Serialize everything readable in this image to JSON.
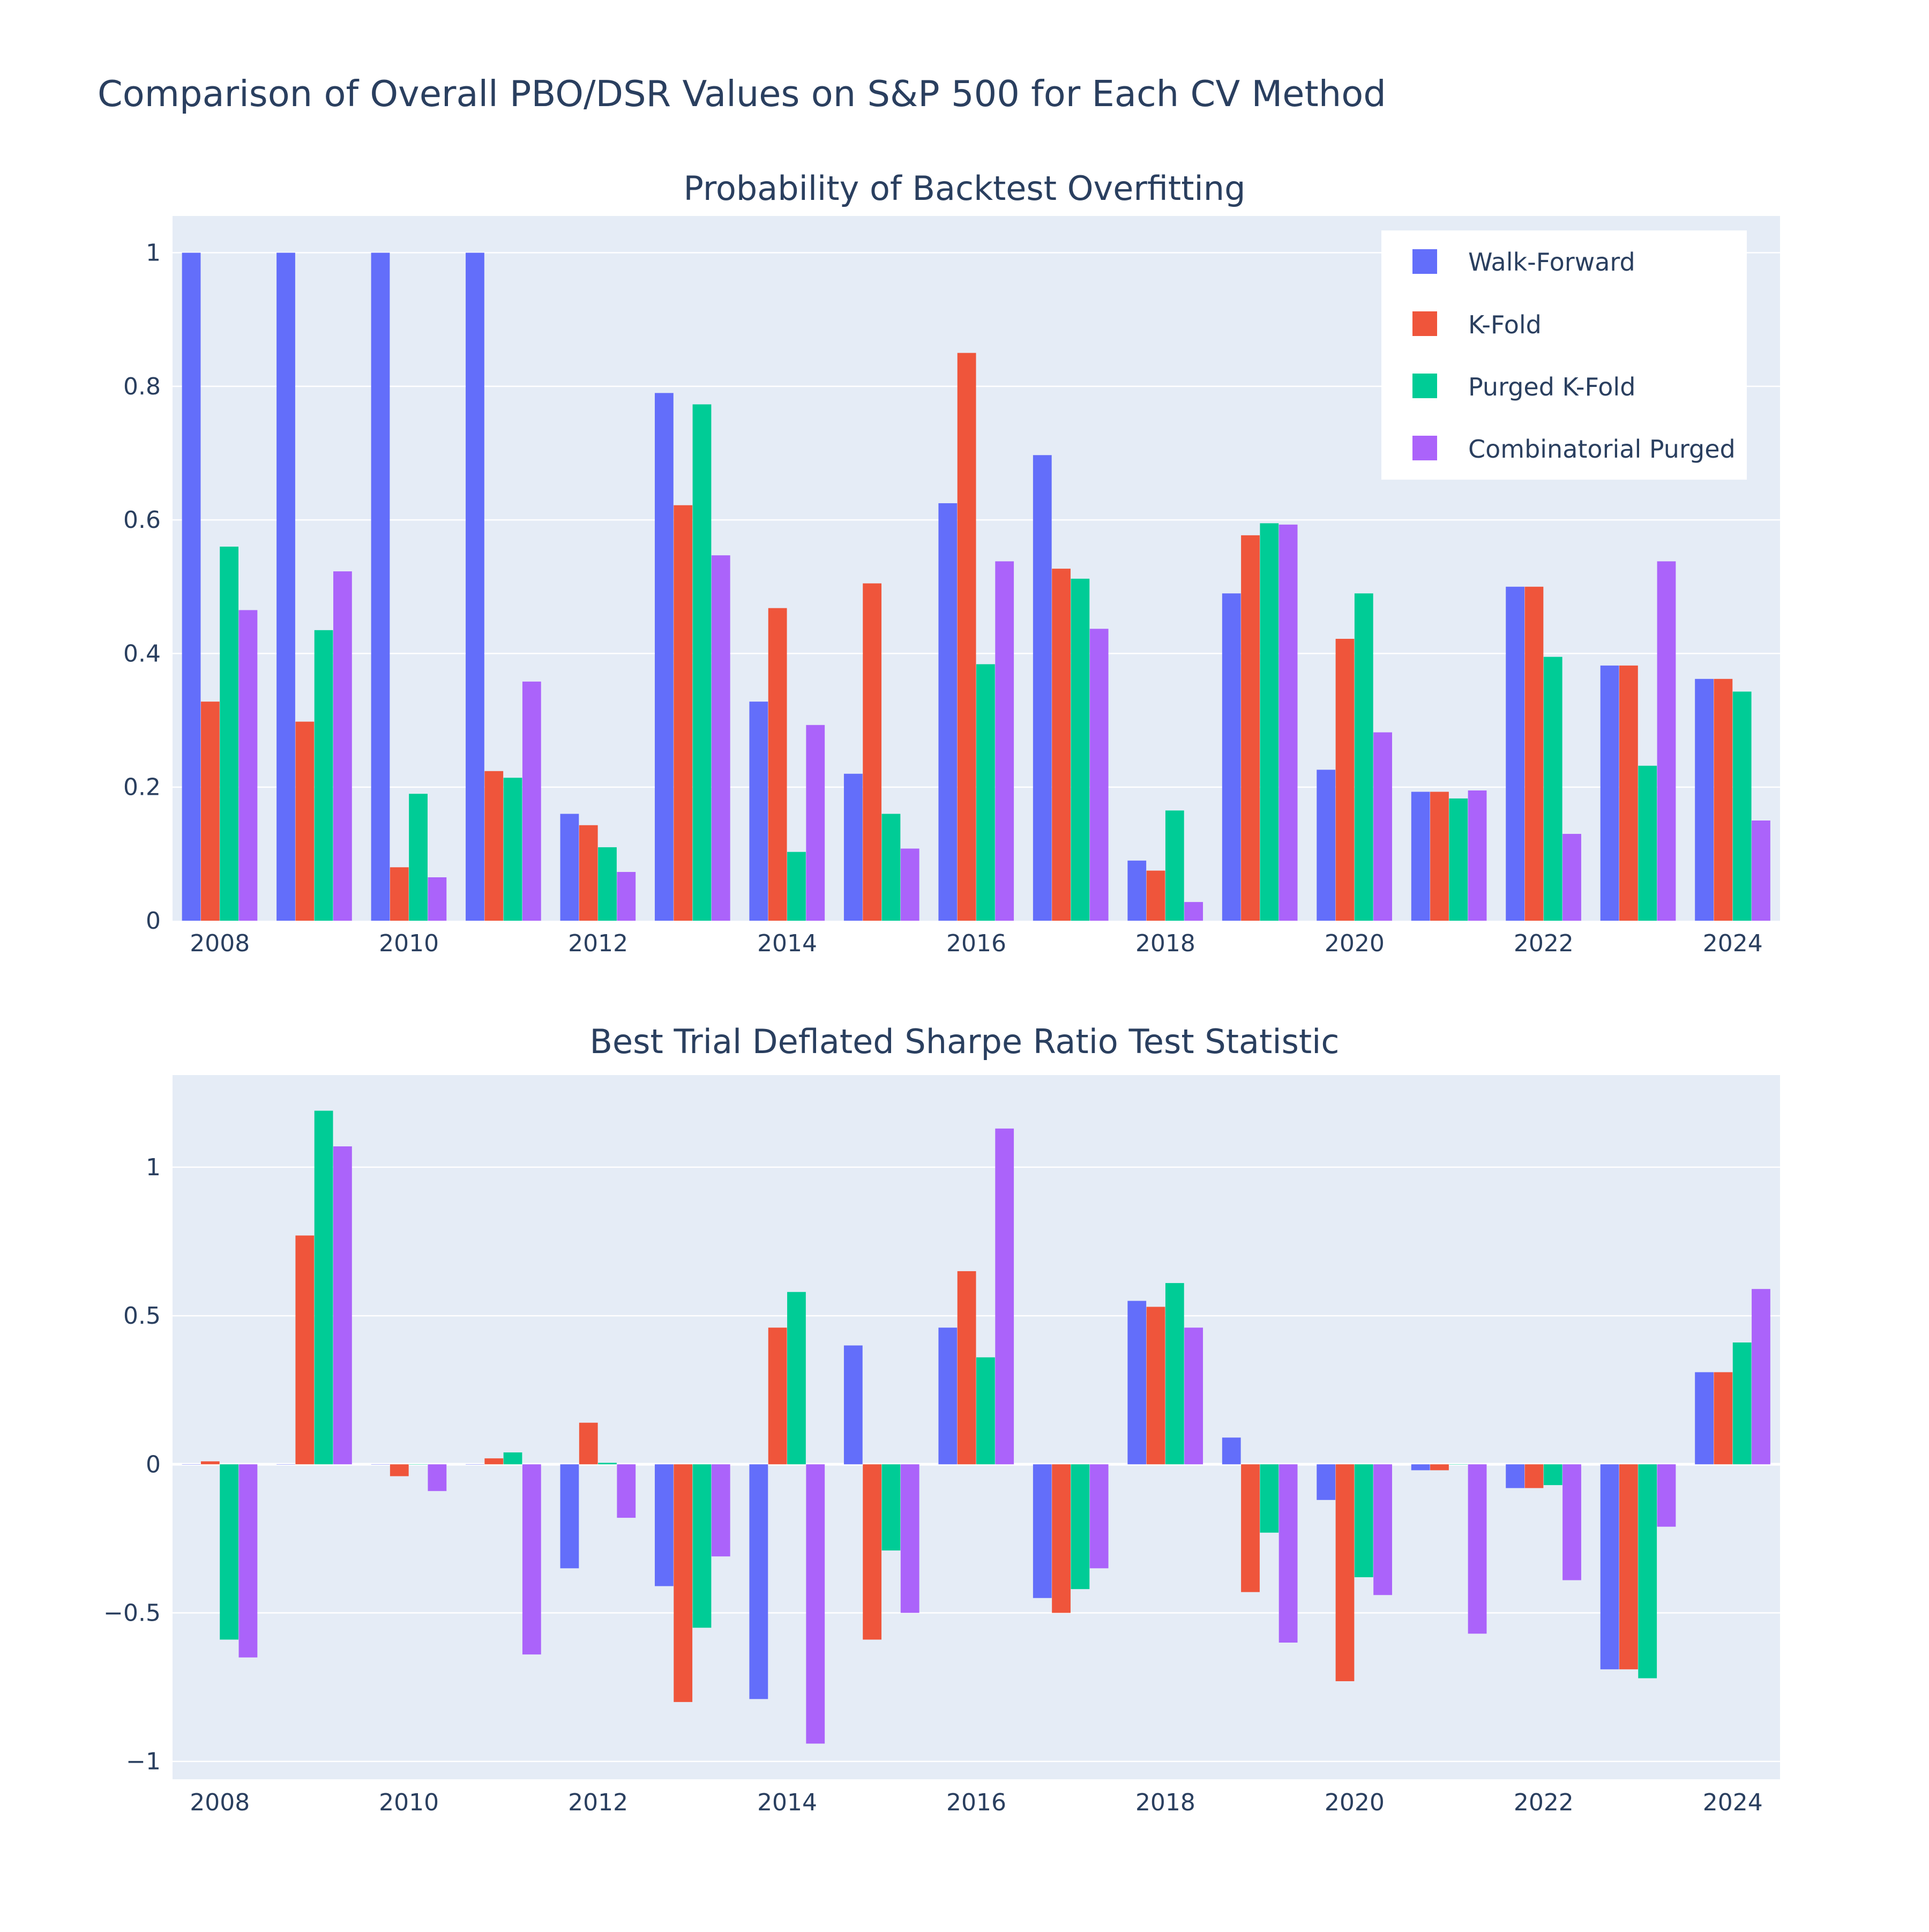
{
  "title": "Comparison of Overall PBO/DSR Values on S&P 500 for Each CV Method",
  "colors": {
    "plot_bg": "#E5ECF6",
    "grid": "#ffffff",
    "text": "#2a3f5f",
    "series": [
      "#636EFA",
      "#EF553B",
      "#00CC96",
      "#AB63FA"
    ]
  },
  "legend": {
    "placement": "top-right of upper plot",
    "entries": [
      "Walk-Forward",
      "K-Fold",
      "Purged K-Fold",
      "Combinatorial Purged"
    ]
  },
  "chart_data": [
    {
      "type": "bar",
      "title": "Probability of Backtest Overfitting",
      "xlabel": "",
      "ylabel": "",
      "x": [
        2008,
        2009,
        2010,
        2011,
        2012,
        2013,
        2014,
        2015,
        2016,
        2017,
        2018,
        2019,
        2020,
        2021,
        2022,
        2023,
        2024
      ],
      "x_tick_labels": [
        "2008",
        "2010",
        "2012",
        "2014",
        "2016",
        "2018",
        "2020",
        "2022",
        "2024"
      ],
      "ylim": [
        0,
        1.055
      ],
      "y_ticks": [
        0,
        0.2,
        0.4,
        0.6,
        0.8,
        1
      ],
      "y_tick_labels": [
        "0",
        "0.2",
        "0.4",
        "0.6",
        "0.8",
        "1"
      ],
      "grid": true,
      "series": [
        {
          "name": "Walk-Forward",
          "values": [
            1.0,
            1.0,
            1.0,
            1.0,
            0.16,
            0.79,
            0.328,
            0.22,
            0.625,
            0.697,
            0.09,
            0.49,
            0.226,
            0.193,
            0.5,
            0.382,
            0.362
          ]
        },
        {
          "name": "K-Fold",
          "values": [
            0.328,
            0.298,
            0.08,
            0.224,
            0.143,
            0.622,
            0.468,
            0.505,
            0.85,
            0.527,
            0.075,
            0.577,
            0.422,
            0.193,
            0.5,
            0.382,
            0.362
          ]
        },
        {
          "name": "Purged K-Fold",
          "values": [
            0.56,
            0.435,
            0.19,
            0.214,
            0.11,
            0.773,
            0.103,
            0.16,
            0.384,
            0.512,
            0.165,
            0.595,
            0.49,
            0.183,
            0.395,
            0.232,
            0.343
          ]
        },
        {
          "name": "Combinatorial Purged",
          "values": [
            0.465,
            0.523,
            0.065,
            0.358,
            0.073,
            0.547,
            0.293,
            0.108,
            0.538,
            0.437,
            0.028,
            0.593,
            0.282,
            0.195,
            0.13,
            0.538,
            0.15
          ]
        }
      ]
    },
    {
      "type": "bar",
      "title": "Best Trial Deflated Sharpe Ratio Test Statistic",
      "xlabel": "",
      "ylabel": "",
      "x": [
        2008,
        2009,
        2010,
        2011,
        2012,
        2013,
        2014,
        2015,
        2016,
        2017,
        2018,
        2019,
        2020,
        2021,
        2022,
        2023,
        2024
      ],
      "x_tick_labels": [
        "2008",
        "2010",
        "2012",
        "2014",
        "2016",
        "2018",
        "2020",
        "2022",
        "2024"
      ],
      "ylim": [
        -1.06,
        1.31
      ],
      "y_ticks": [
        -1,
        -0.5,
        0,
        0.5,
        1
      ],
      "y_tick_labels": [
        "−1",
        "−0.5",
        "0",
        "0.5",
        "1"
      ],
      "grid": true,
      "series": [
        {
          "name": "Walk-Forward",
          "values": [
            0.0,
            0.0,
            0.0,
            0.0,
            -0.35,
            -0.41,
            -0.79,
            0.4,
            0.46,
            -0.45,
            0.55,
            0.09,
            -0.12,
            -0.02,
            -0.08,
            -0.69,
            0.31
          ]
        },
        {
          "name": "K-Fold",
          "values": [
            0.01,
            0.77,
            -0.04,
            0.02,
            0.14,
            -0.8,
            0.46,
            -0.59,
            0.65,
            -0.5,
            0.53,
            -0.43,
            -0.73,
            -0.02,
            -0.08,
            -0.69,
            0.31
          ]
        },
        {
          "name": "Purged K-Fold",
          "values": [
            -0.59,
            1.19,
            0.0,
            0.04,
            0.005,
            -0.55,
            0.58,
            -0.29,
            0.36,
            -0.42,
            0.61,
            -0.23,
            -0.38,
            0.0,
            -0.07,
            -0.72,
            0.41
          ]
        },
        {
          "name": "Combinatorial Purged",
          "values": [
            -0.65,
            1.07,
            -0.09,
            -0.64,
            -0.18,
            -0.31,
            -0.94,
            -0.5,
            1.13,
            -0.35,
            0.46,
            -0.6,
            -0.44,
            -0.57,
            -0.39,
            -0.21,
            0.59
          ]
        }
      ]
    }
  ]
}
